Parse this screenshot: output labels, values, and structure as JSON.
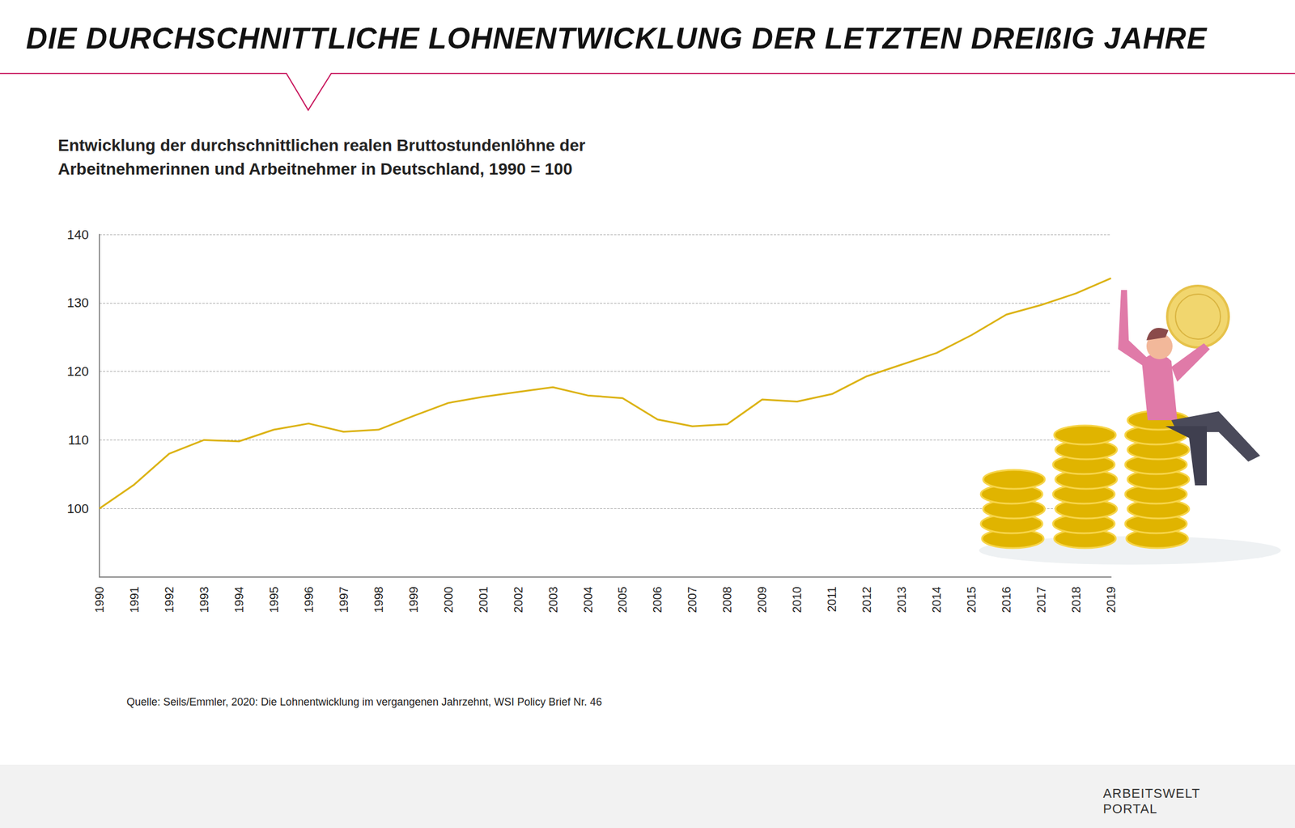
{
  "chart_data": {
    "type": "line",
    "title": "DIE DURCHSCHNITTLICHE LOHNENTWICKLUNG DER LETZTEN DREIßIG JAHRE",
    "subtitle": "Entwicklung der durchschnittlichen realen Bruttostundenlöhne der Arbeitnehmerinnen und Arbeitnehmer in Deutschland, 1990 = 100",
    "source": "Quelle: Seils/Emmler, 2020: Die Lohnentwicklung im vergangenen Jahrzehnt, WSI Policy Brief Nr. 46",
    "categories": [
      "1990",
      "1991",
      "1992",
      "1993",
      "1994",
      "1995",
      "1996",
      "1997",
      "1998",
      "1999",
      "2000",
      "2001",
      "2002",
      "2003",
      "2004",
      "2005",
      "2006",
      "2007",
      "2008",
      "2009",
      "2010",
      "2011",
      "2012",
      "2013",
      "2014",
      "2015",
      "2016",
      "2017",
      "2018",
      "2019"
    ],
    "values": [
      100,
      103.5,
      108,
      110,
      109.8,
      111.5,
      112.4,
      111.2,
      111.5,
      113.5,
      115.4,
      116.3,
      117,
      117.7,
      116.5,
      116.1,
      113,
      112,
      112.3,
      115.9,
      115.6,
      116.7,
      119.3,
      121,
      122.7,
      125.3,
      128.3,
      129.7,
      131.4,
      133.6
    ],
    "color": "#dcb315",
    "ylim": [
      90,
      140
    ],
    "yticks": [
      100,
      110,
      120,
      130,
      140
    ],
    "grid": true
  },
  "logo": [
    "ARBEITSWELT",
    "PORTAL"
  ]
}
